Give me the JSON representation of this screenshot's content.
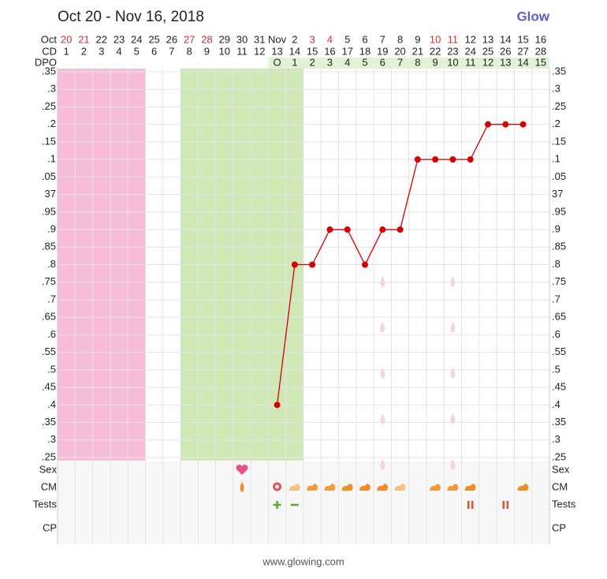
{
  "title": "Oct 20 - Nov 16, 2018",
  "logo": "Glow",
  "footer": "www.glowing.com",
  "chart_data": {
    "type": "line",
    "row_labels": {
      "date": "Oct",
      "cd": "CD",
      "dpo": "DPO"
    },
    "dates": [
      {
        "label": "20",
        "color": "#d32f2f"
      },
      {
        "label": "21",
        "color": "#d32f2f"
      },
      {
        "label": "22",
        "color": "#222222"
      },
      {
        "label": "23",
        "color": "#222222"
      },
      {
        "label": "24",
        "color": "#222222"
      },
      {
        "label": "25",
        "color": "#222222"
      },
      {
        "label": "26",
        "color": "#222222"
      },
      {
        "label": "27",
        "color": "#d32f2f"
      },
      {
        "label": "28",
        "color": "#d32f2f"
      },
      {
        "label": "29",
        "color": "#222222"
      },
      {
        "label": "30",
        "color": "#222222"
      },
      {
        "label": "31",
        "color": "#222222"
      },
      {
        "label": "Nov",
        "color": "#222222"
      },
      {
        "label": "2",
        "color": "#222222"
      },
      {
        "label": "3",
        "color": "#d32f2f"
      },
      {
        "label": "4",
        "color": "#d32f2f"
      },
      {
        "label": "5",
        "color": "#222222"
      },
      {
        "label": "6",
        "color": "#222222"
      },
      {
        "label": "7",
        "color": "#222222"
      },
      {
        "label": "8",
        "color": "#222222"
      },
      {
        "label": "9",
        "color": "#222222"
      },
      {
        "label": "10",
        "color": "#d32f2f"
      },
      {
        "label": "11",
        "color": "#d32f2f"
      },
      {
        "label": "12",
        "color": "#222222"
      },
      {
        "label": "13",
        "color": "#222222"
      },
      {
        "label": "14",
        "color": "#222222"
      },
      {
        "label": "15",
        "color": "#222222"
      },
      {
        "label": "16",
        "color": "#222222"
      }
    ],
    "categories": [
      "1",
      "2",
      "3",
      "4",
      "5",
      "6",
      "7",
      "8",
      "9",
      "10",
      "11",
      "12",
      "13",
      "14",
      "15",
      "16",
      "17",
      "18",
      "19",
      "20",
      "21",
      "22",
      "23",
      "24",
      "25",
      "26",
      "27",
      "28"
    ],
    "dpo": [
      null,
      null,
      null,
      null,
      null,
      null,
      null,
      null,
      null,
      null,
      null,
      null,
      "O",
      "1",
      "2",
      "3",
      "4",
      "5",
      "6",
      "7",
      "8",
      "9",
      "10",
      "11",
      "12",
      "13",
      "14",
      "15"
    ],
    "values": [
      null,
      null,
      null,
      null,
      null,
      null,
      null,
      null,
      null,
      null,
      null,
      null,
      36.4,
      36.8,
      36.8,
      36.9,
      36.9,
      36.8,
      36.9,
      36.9,
      37.1,
      37.1,
      37.1,
      37.1,
      37.2,
      37.2,
      37.2,
      null
    ],
    "color": "#d50000",
    "ylim": [
      36.25,
      37.35
    ],
    "yticks": [
      {
        "value": 37.35,
        "label": ".35"
      },
      {
        "value": 37.3,
        "label": ".3"
      },
      {
        "value": 37.25,
        "label": ".25"
      },
      {
        "value": 37.2,
        "label": ".2"
      },
      {
        "value": 37.15,
        "label": ".15"
      },
      {
        "value": 37.1,
        "label": ".1"
      },
      {
        "value": 37.05,
        "label": ".05"
      },
      37,
      {
        "value": 36.95,
        "label": ".95"
      },
      {
        "value": 36.9,
        "label": ".9"
      },
      {
        "value": 36.85,
        "label": ".85"
      },
      {
        "value": 36.8,
        "label": ".8"
      },
      {
        "value": 36.75,
        "label": ".75"
      },
      {
        "value": 36.7,
        "label": ".7"
      },
      {
        "value": 36.65,
        "label": ".65"
      },
      {
        "value": 36.6,
        "label": ".6"
      },
      {
        "value": 36.55,
        "label": ".55"
      },
      {
        "value": 36.5,
        "label": ".5"
      },
      {
        "value": 36.45,
        "label": ".45"
      },
      {
        "value": 36.4,
        "label": ".4"
      },
      {
        "value": 36.35,
        "label": ".35"
      },
      {
        "value": 36.3,
        "label": ".3"
      },
      {
        "value": 36.25,
        "label": ".25"
      }
    ],
    "grid": true,
    "tracks": [
      "Sex",
      "CM",
      "Tests",
      "CP"
    ]
  }
}
